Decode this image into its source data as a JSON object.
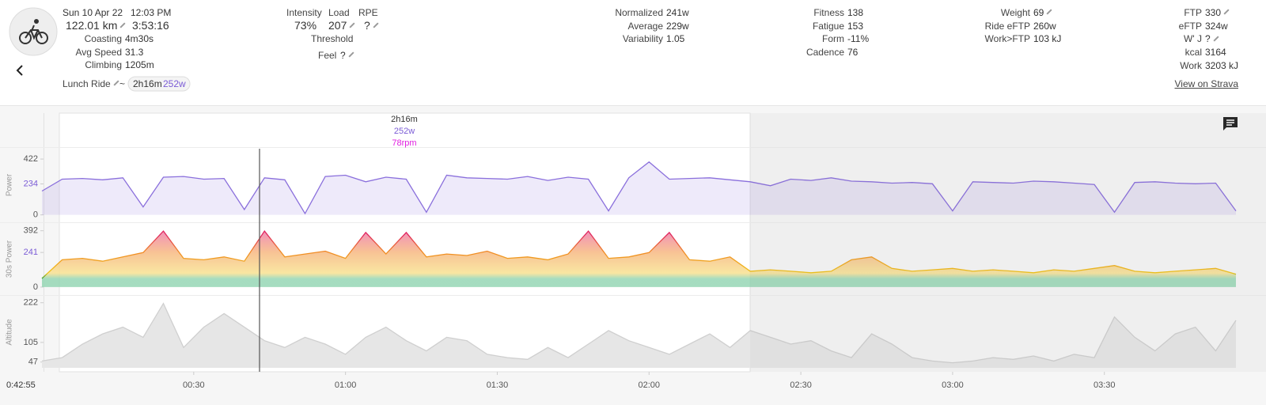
{
  "header": {
    "date": "Sun 10 Apr 22",
    "time": "12:03 PM",
    "distance": "122.01 km",
    "duration": "3:53:16",
    "summary": [
      {
        "label": "Coasting",
        "value": "4m30s"
      },
      {
        "label": "Avg Speed",
        "value": "31.3"
      },
      {
        "label": "Climbing",
        "value": "1205m"
      }
    ],
    "load_labels": [
      "Intensity",
      "Load",
      "RPE"
    ],
    "load_values": [
      "73%",
      "207",
      "?"
    ],
    "threshold": "Threshold",
    "feel": {
      "label": "Feel",
      "value": "?"
    },
    "power_stats": [
      {
        "label": "Normalized",
        "value": "241w"
      },
      {
        "label": "Average",
        "value": "229w"
      },
      {
        "label": "Variability",
        "value": "1.05"
      }
    ],
    "fitness_stats": [
      {
        "label": "Fitness",
        "value": "138"
      },
      {
        "label": "Fatigue",
        "value": "153"
      },
      {
        "label": "Form",
        "value": "-11%"
      },
      {
        "label": "Cadence",
        "value": "76"
      }
    ],
    "body_stats": [
      {
        "label": "Weight",
        "value": "69"
      },
      {
        "label": "Ride eFTP",
        "value": "260w"
      },
      {
        "label": "Work>FTP",
        "value": "103 kJ"
      }
    ],
    "ftp_stats": [
      {
        "label": "FTP",
        "value": "330"
      },
      {
        "label": "eFTP",
        "value": "324w"
      },
      {
        "label": "W' J",
        "value": "?"
      },
      {
        "label": "kcal",
        "value": "3164"
      },
      {
        "label": "Work",
        "value": "3203 kJ"
      }
    ],
    "activity_name": "Lunch Ride",
    "separator": "~",
    "interval_duration": "2h16m",
    "interval_power": "252w",
    "strava": "View on Strava"
  },
  "charts": {
    "xlim": [
      0,
      236
    ],
    "xticks": [
      {
        "value": 30,
        "label": "00:30"
      },
      {
        "value": 60,
        "label": "01:00"
      },
      {
        "value": 90,
        "label": "01:30"
      },
      {
        "value": 120,
        "label": "02:00"
      },
      {
        "value": 150,
        "label": "02:30"
      },
      {
        "value": 180,
        "label": "03:00"
      },
      {
        "value": 210,
        "label": "03:30"
      }
    ],
    "cursor_time": "0:42:55",
    "tooltip": {
      "duration": "2h16m",
      "power": "252w",
      "cadence": "78rpm"
    },
    "x": [
      0,
      4,
      8,
      12,
      16,
      20,
      24,
      28,
      32,
      36,
      40,
      44,
      48,
      52,
      56,
      60,
      64,
      68,
      72,
      76,
      80,
      84,
      88,
      92,
      96,
      100,
      104,
      108,
      112,
      116,
      120,
      124,
      128,
      132,
      136,
      140,
      144,
      148,
      152,
      156,
      160,
      164,
      168,
      172,
      176,
      180,
      184,
      188,
      192,
      196,
      200,
      204,
      208,
      212,
      216,
      220,
      224,
      228,
      232,
      236
    ],
    "panels": [
      {
        "name": "Power",
        "style": "power",
        "color": "#8a6fdc",
        "ylim": [
          -50,
          500
        ],
        "yticks": [
          0,
          234,
          422
        ],
        "tick_colors": [
          "#555",
          "#7b5cd6",
          "#555"
        ],
        "values": [
          180,
          270,
          275,
          265,
          280,
          60,
          285,
          290,
          270,
          275,
          40,
          280,
          265,
          10,
          290,
          300,
          250,
          285,
          270,
          20,
          300,
          280,
          275,
          270,
          290,
          260,
          285,
          270,
          30,
          280,
          400,
          270,
          275,
          280,
          265,
          250,
          220,
          270,
          260,
          280,
          255,
          250,
          240,
          245,
          235,
          30,
          250,
          245,
          240,
          255,
          250,
          240,
          230,
          20,
          245,
          250,
          240,
          235,
          240,
          30
        ]
      },
      {
        "name": "30s Power",
        "style": "zones",
        "color": "#2e9e3a",
        "ylim": [
          -50,
          440
        ],
        "yticks": [
          0,
          241,
          392
        ],
        "tick_colors": [
          "#555",
          "#7b5cd6",
          "#555"
        ],
        "values": [
          60,
          190,
          200,
          180,
          210,
          240,
          390,
          200,
          190,
          210,
          180,
          390,
          210,
          230,
          250,
          200,
          380,
          230,
          380,
          210,
          230,
          220,
          250,
          200,
          210,
          190,
          230,
          390,
          200,
          210,
          240,
          380,
          190,
          180,
          210,
          110,
          120,
          110,
          100,
          110,
          190,
          210,
          130,
          110,
          120,
          130,
          110,
          120,
          110,
          100,
          120,
          110,
          130,
          150,
          110,
          100,
          110,
          120,
          130,
          90
        ]
      },
      {
        "name": "Altitude",
        "style": "altitude",
        "color": "#cfcfcf",
        "ylim": [
          30,
          240
        ],
        "yticks": [
          47,
          105,
          222
        ],
        "tick_colors": [
          "#555",
          "#555",
          "#555"
        ],
        "values": [
          50,
          60,
          100,
          130,
          150,
          120,
          220,
          90,
          150,
          190,
          150,
          110,
          90,
          120,
          100,
          70,
          120,
          150,
          110,
          80,
          120,
          110,
          70,
          60,
          55,
          90,
          60,
          100,
          140,
          110,
          90,
          70,
          100,
          130,
          90,
          140,
          120,
          100,
          110,
          80,
          60,
          130,
          100,
          60,
          50,
          45,
          50,
          60,
          55,
          65,
          50,
          70,
          60,
          180,
          120,
          80,
          130,
          150,
          80,
          170
        ]
      }
    ]
  }
}
